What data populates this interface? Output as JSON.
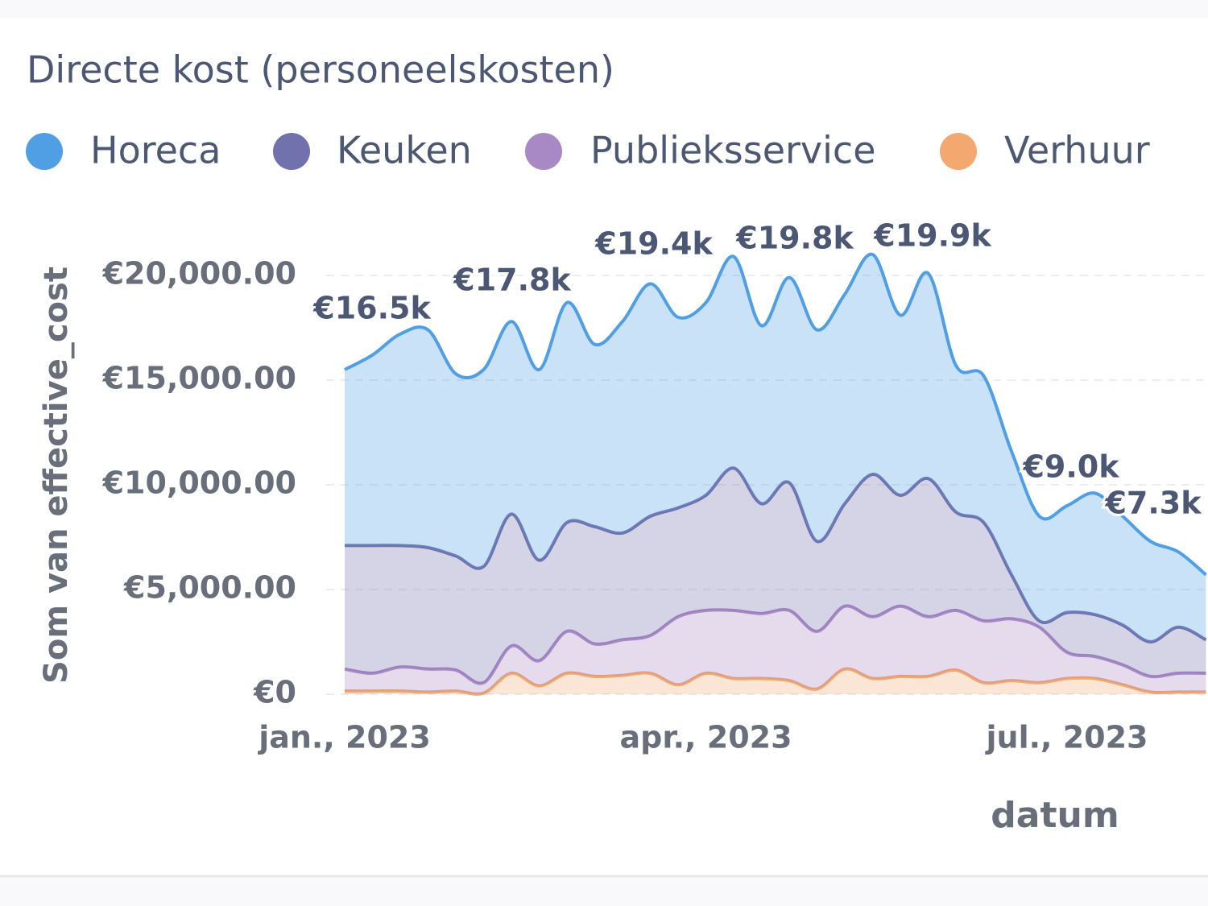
{
  "chart_data": {
    "type": "stacked_area",
    "title": "Directe kost (personeelskosten)",
    "y_label": "Som van effective_cost",
    "x_label": "datum",
    "categories": [
      "jan., 2023",
      null,
      null,
      null,
      null,
      null,
      null,
      null,
      null,
      null,
      null,
      null,
      null,
      "apr., 2023",
      null,
      null,
      null,
      null,
      null,
      null,
      null,
      null,
      null,
      null,
      null,
      null,
      "jul., 2023",
      null,
      null,
      null,
      null,
      null
    ],
    "series": [
      {
        "name": "Horeca",
        "color": "#509ee3",
        "values": [
          8400,
          9100,
          10100,
          10400,
          8700,
          9400,
          9200,
          9100,
          10500,
          8700,
          10100,
          11100,
          9100,
          9200,
          10100,
          8500,
          9800,
          10100,
          10000,
          10500,
          8600,
          9800,
          7000,
          7000,
          5900,
          5000,
          5100,
          5800,
          5200,
          4800,
          3600,
          3100
        ]
      },
      {
        "name": "Keuken",
        "color": "#7172ad",
        "values": [
          5900,
          6100,
          5800,
          5800,
          5450,
          5550,
          6300,
          4800,
          5200,
          5600,
          5100,
          5700,
          5200,
          5500,
          6800,
          5250,
          6100,
          4300,
          4900,
          6800,
          5300,
          6600,
          4700,
          4700,
          2100,
          300,
          1900,
          2000,
          1900,
          1650,
          2200,
          1600
        ]
      },
      {
        "name": "Publieksservice",
        "color": "#a989c5",
        "values": [
          1050,
          850,
          1150,
          1100,
          1000,
          500,
          1300,
          1200,
          2000,
          1550,
          1700,
          1800,
          3250,
          3000,
          3250,
          3100,
          3350,
          2750,
          3000,
          2950,
          3350,
          2850,
          2850,
          2950,
          2950,
          2650,
          1250,
          1050,
          950,
          750,
          900,
          900
        ]
      },
      {
        "name": "Verhuur",
        "color": "#f2a86f",
        "values": [
          150,
          150,
          150,
          100,
          150,
          50,
          1000,
          400,
          1000,
          850,
          900,
          1000,
          450,
          1000,
          750,
          750,
          650,
          250,
          1200,
          750,
          850,
          850,
          1150,
          550,
          650,
          550,
          750,
          750,
          450,
          100,
          100,
          100
        ]
      }
    ],
    "annotations": [
      "€16.5k",
      "€17.8k",
      "€19.4k",
      "€19.8k",
      "€19.9k",
      "€9.0k",
      "€7.3k"
    ],
    "ylim": [
      0,
      22000
    ],
    "yticks": [
      {
        "value": 0,
        "label": "€0"
      },
      {
        "value": 5000,
        "label": "€5,000.00"
      },
      {
        "value": 10000,
        "label": "€10,000.00"
      },
      {
        "value": 15000,
        "label": "€15,000.00"
      },
      {
        "value": 20000,
        "label": "€20,000.00"
      }
    ],
    "grid": true,
    "legend": "top"
  }
}
